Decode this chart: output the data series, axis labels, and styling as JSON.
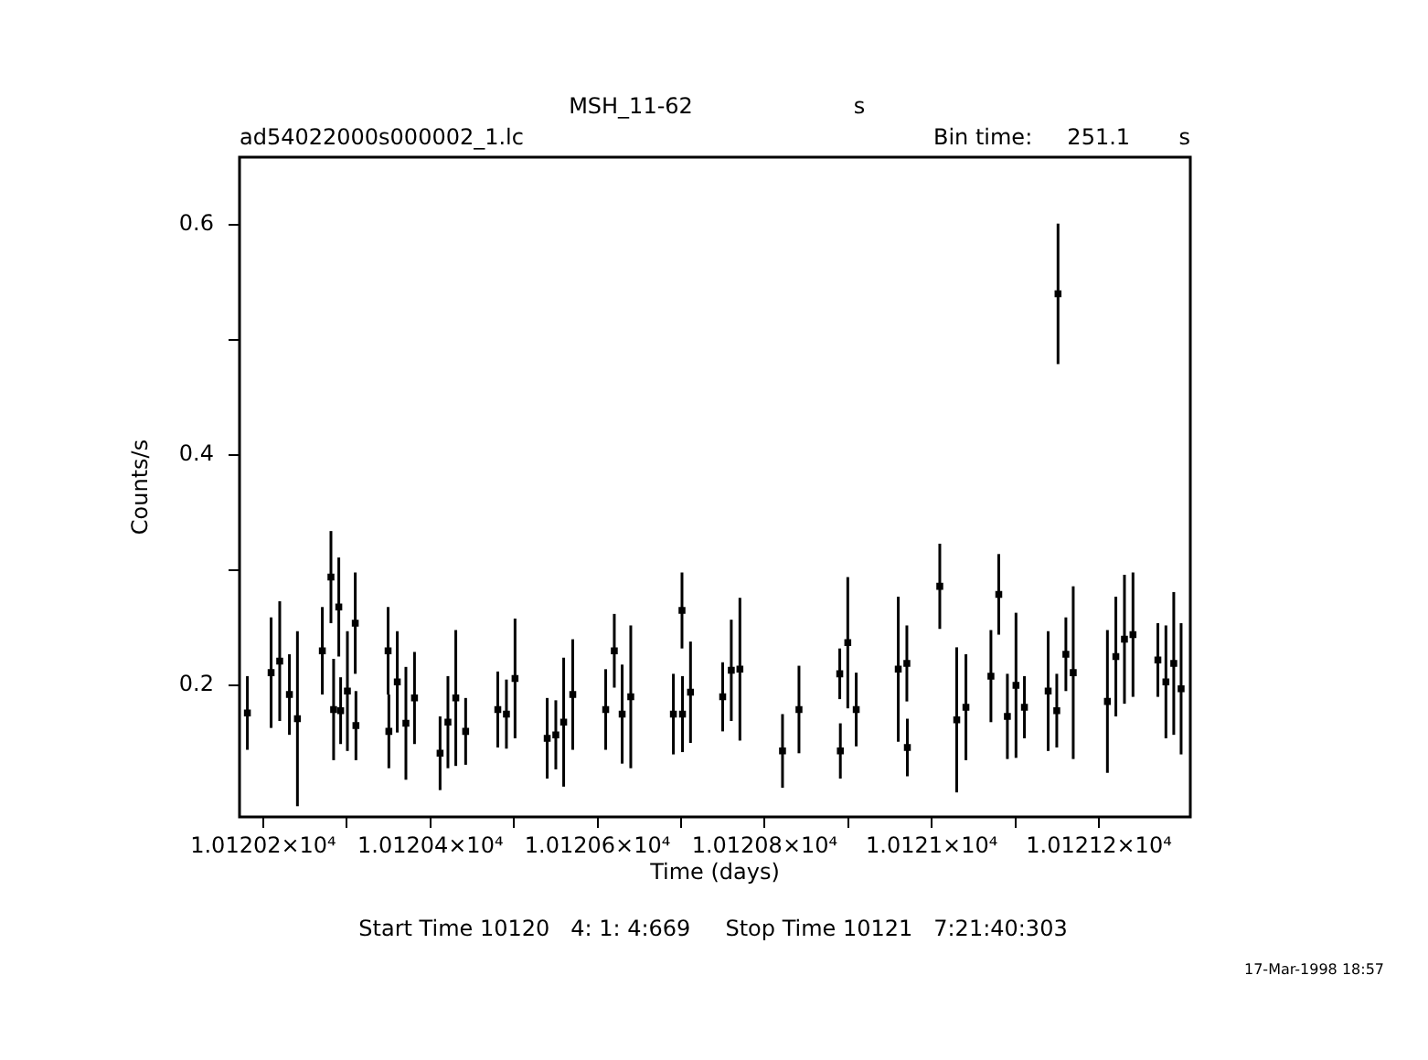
{
  "chart_data": {
    "type": "scatter",
    "title": "MSH_11-62",
    "xlabel": "Time (days)",
    "ylabel": "Counts/s",
    "annotations": [
      "s",
      "ad54022000s000002_1.lc",
      "Bin time:     251.1       s",
      "Start Time 10120   4: 1: 4:669     Stop Time 10121   7:21:40:303",
      "17-Mar-1998 18:57"
    ],
    "x": [
      10120.181,
      10120.2094,
      10120.2197,
      10120.2313,
      10120.2409,
      10120.2707,
      10120.281,
      10120.2842,
      10120.2904,
      10120.2926,
      10120.3007,
      10120.3101,
      10120.3109,
      10120.3494,
      10120.3503,
      10120.3604,
      10120.3707,
      10120.381,
      10120.4116,
      10120.421,
      10120.4304,
      10120.4422,
      10120.4807,
      10120.491,
      10120.5013,
      10120.5398,
      10120.5501,
      10120.5595,
      10120.5704,
      10120.6098,
      10120.6201,
      10120.6295,
      10120.6398,
      10120.6908,
      10120.7011,
      10120.7017,
      10120.7113,
      10120.7498,
      10120.7601,
      10120.7704,
      10120.8214,
      10120.8411,
      10120.8899,
      10120.8906,
      10120.8995,
      10120.9096,
      10120.9599,
      10120.9702,
      10120.9708,
      10121.0096,
      10121.0299,
      10121.0409,
      10121.0708,
      10121.0802,
      10121.0905,
      10121.1008,
      10121.1109,
      10121.1393,
      10121.1496,
      10121.1511,
      10121.1605,
      10121.1693,
      10121.2102,
      10121.2203,
      10121.2306,
      10121.2408,
      10121.2706,
      10121.2802,
      10121.2896,
      10121.2984
    ],
    "series": [
      {
        "color": "#000000",
        "values": [
          0.176,
          0.211,
          0.221,
          0.192,
          0.171,
          0.23,
          0.294,
          0.179,
          0.268,
          0.178,
          0.195,
          0.254,
          0.165,
          0.23,
          0.16,
          0.203,
          0.167,
          0.189,
          0.141,
          0.168,
          0.189,
          0.16,
          0.179,
          0.175,
          0.206,
          0.154,
          0.157,
          0.168,
          0.192,
          0.179,
          0.23,
          0.175,
          0.19,
          0.175,
          0.265,
          0.175,
          0.194,
          0.19,
          0.213,
          0.214,
          0.143,
          0.179,
          0.21,
          0.143,
          0.237,
          0.179,
          0.214,
          0.219,
          0.146,
          0.286,
          0.17,
          0.181,
          0.208,
          0.279,
          0.173,
          0.2,
          0.181,
          0.195,
          0.178,
          0.54,
          0.227,
          0.211,
          0.186,
          0.225,
          0.24,
          0.244,
          0.222,
          0.203,
          0.219,
          0.197
        ],
        "errors": [
          0.032,
          0.048,
          0.052,
          0.035,
          0.076,
          0.038,
          0.04,
          0.044,
          0.043,
          0.029,
          0.052,
          0.044,
          0.03,
          0.038,
          0.032,
          0.044,
          0.049,
          0.04,
          0.032,
          0.04,
          0.059,
          0.029,
          0.033,
          0.03,
          0.052,
          0.035,
          0.03,
          0.056,
          0.048,
          0.035,
          0.032,
          0.043,
          0.062,
          0.035,
          0.033,
          0.033,
          0.044,
          0.03,
          0.044,
          0.062,
          0.032,
          0.038,
          0.022,
          0.024,
          0.057,
          0.032,
          0.063,
          0.033,
          0.025,
          0.037,
          0.063,
          0.046,
          0.04,
          0.035,
          0.037,
          0.063,
          0.027,
          0.052,
          0.032,
          0.061,
          0.032,
          0.075,
          0.062,
          0.052,
          0.056,
          0.054,
          0.032,
          0.049,
          0.062,
          0.057
        ]
      }
    ],
    "xlim": [
      10120.1716,
      10121.3094
    ],
    "xticks": [
      {
        "value": 10120.2,
        "label": "1.01202×10⁴"
      },
      {
        "value": 10120.3,
        "label": null
      },
      {
        "value": 10120.4,
        "label": "1.01204×10⁴"
      },
      {
        "value": 10120.5,
        "label": null
      },
      {
        "value": 10120.6,
        "label": "1.01206×10⁴"
      },
      {
        "value": 10120.7,
        "label": null
      },
      {
        "value": 10120.8,
        "label": "1.01208×10⁴"
      },
      {
        "value": 10120.9,
        "label": null
      },
      {
        "value": 10121.0,
        "label": "1.0121×10⁴"
      },
      {
        "value": 10121.1,
        "label": null
      },
      {
        "value": 10121.2,
        "label": "1.01212×10⁴"
      }
    ],
    "ylim": [
      0.0857,
      0.6587
    ],
    "yticks": [
      {
        "value": 0.2,
        "label": "0.2"
      },
      {
        "value": 0.3,
        "label": null
      },
      {
        "value": 0.4,
        "label": "0.4"
      },
      {
        "value": 0.5,
        "label": null
      },
      {
        "value": 0.6,
        "label": "0.6"
      }
    ],
    "marker": "square",
    "grid": false,
    "legend": false
  }
}
